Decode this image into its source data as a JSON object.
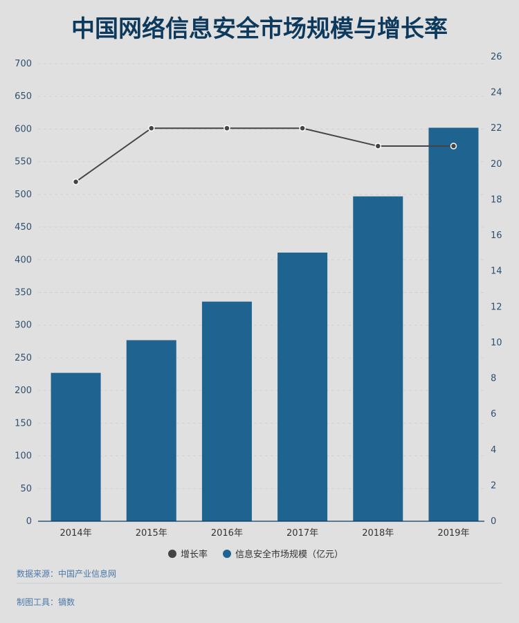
{
  "title": "中国网络信息安全市场规模与增长率",
  "chart_data": {
    "type": "bar",
    "categories": [
      "2014年",
      "2015年",
      "2016年",
      "2017年",
      "2018年",
      "2019年"
    ],
    "series": [
      {
        "name": "信息安全市场规模（亿元）",
        "type": "bar",
        "axis": "left",
        "color": "#1f6391",
        "values": [
          227,
          277,
          336,
          411,
          497,
          602
        ]
      },
      {
        "name": "增长率",
        "type": "line",
        "axis": "right",
        "color": "#444444",
        "values": [
          19,
          22,
          22,
          22,
          21,
          21
        ]
      }
    ],
    "y_left": {
      "min": 0,
      "max": 700,
      "step": 50
    },
    "y_right": {
      "min": 0,
      "max": 26,
      "step": 2
    },
    "grid": true,
    "legend_position": "bottom"
  },
  "footer": {
    "source": "数据来源：中国产业信息网",
    "tool": "制图工具：镝数"
  }
}
